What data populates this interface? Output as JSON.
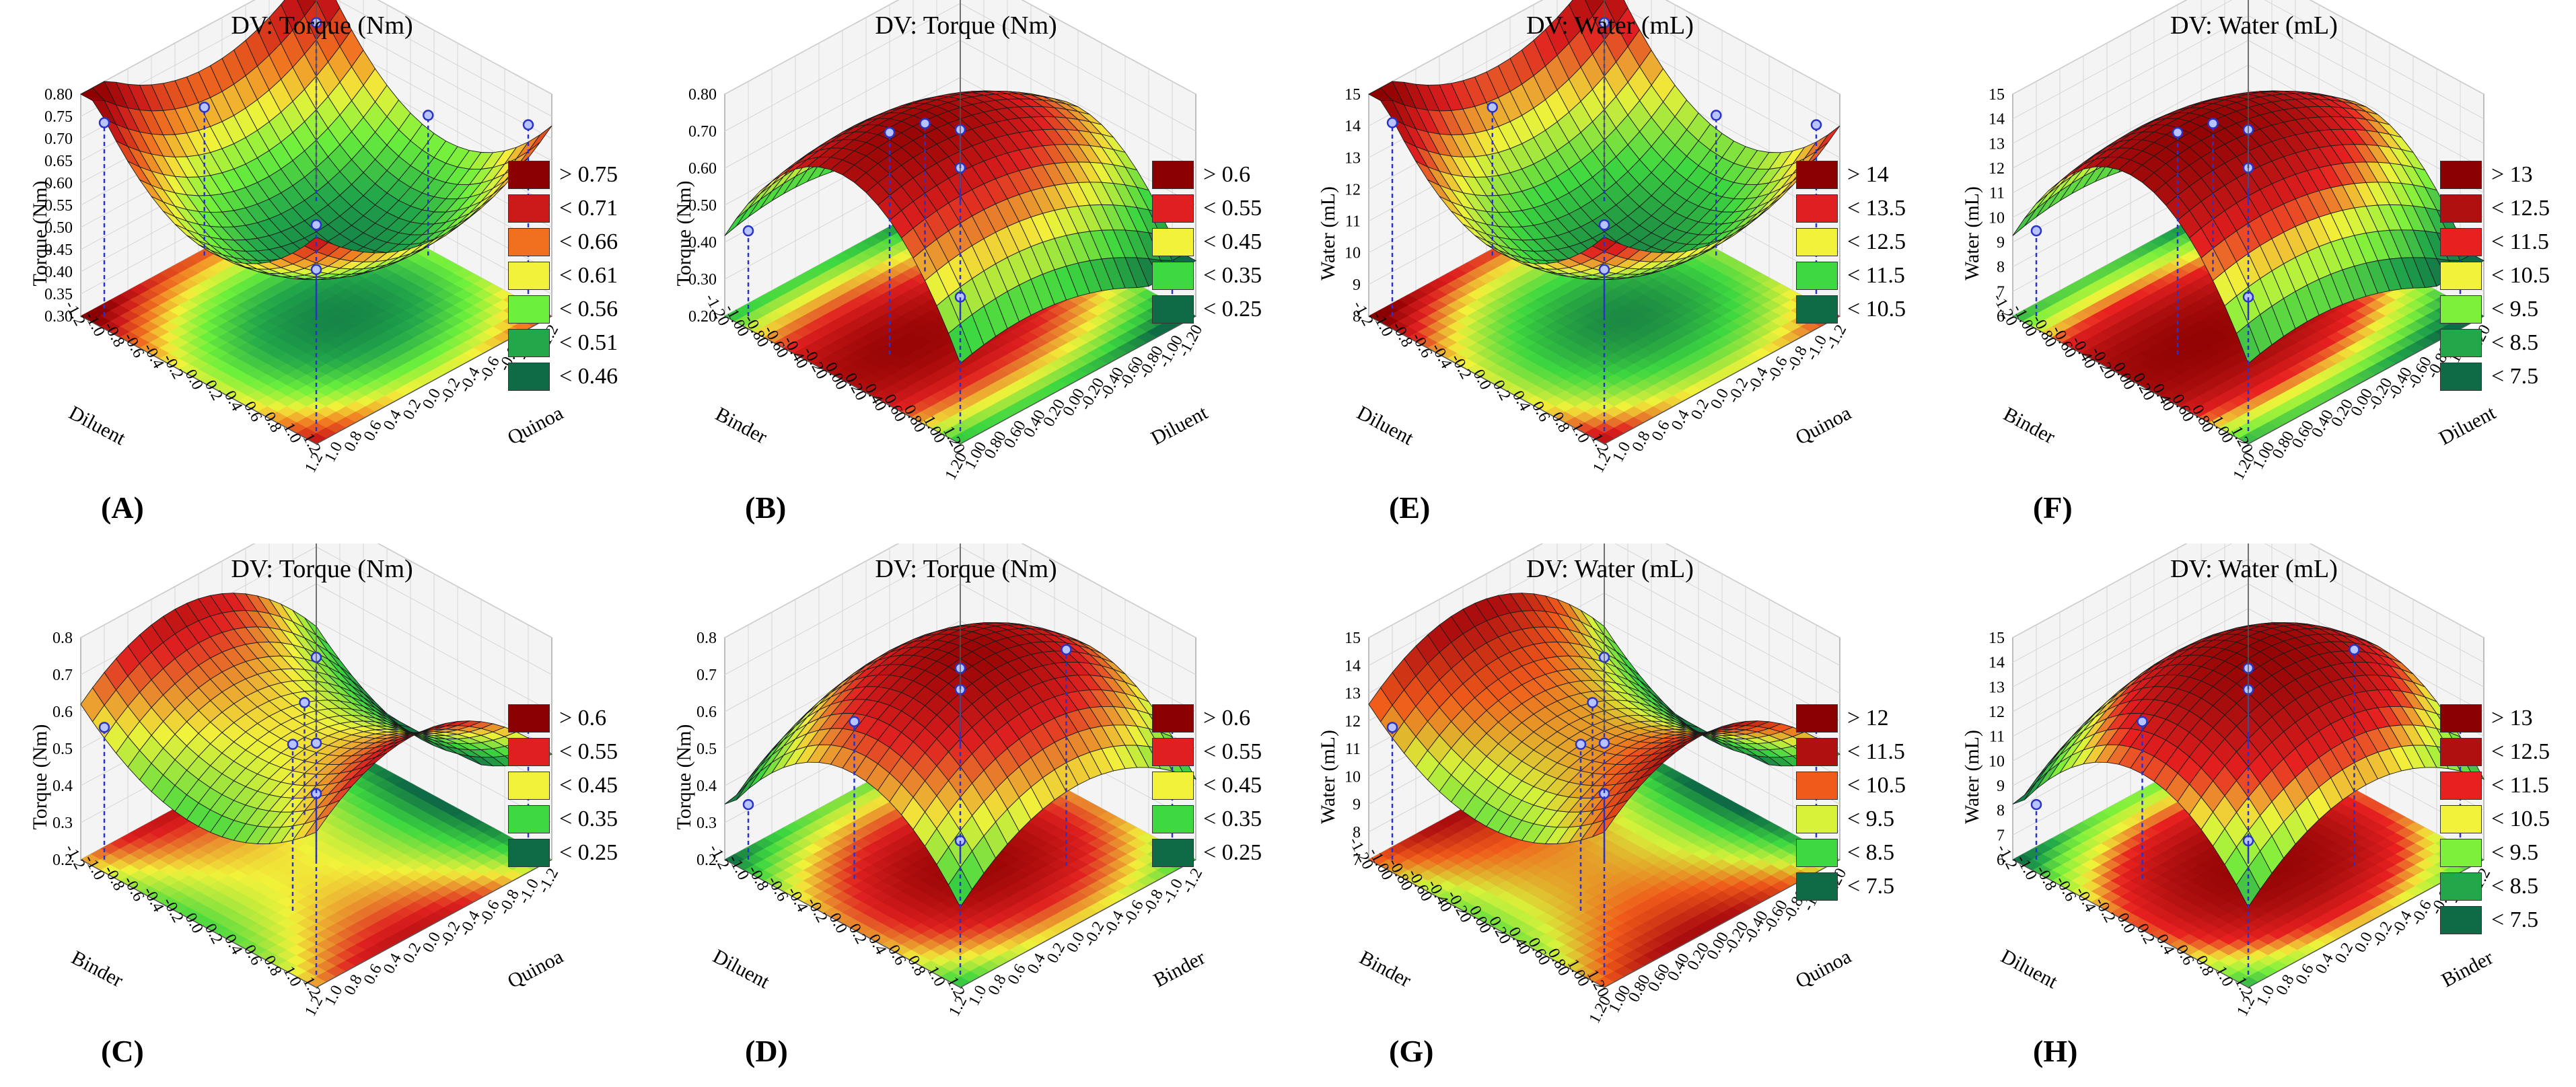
{
  "chart_data": [
    {
      "id": "A",
      "type": "surface3d",
      "title": "DV: Torque (Nm)",
      "panel_label": "(A)",
      "zlabel": "Torque (Nm)",
      "x_axis": "Quinoa",
      "y_axis": "Diluent",
      "x_ticks": [
        "1.2",
        "1.0",
        "0.8",
        "0.6",
        "0.4",
        "0.2",
        "0.0",
        "-0.2",
        "-0.4",
        "-0.6",
        "-0.8",
        "-1.0",
        "-1.2"
      ],
      "y_ticks": [
        "1.2",
        "1.0",
        "0.8",
        "0.6",
        "0.4",
        "0.2",
        "0.0",
        "-0.2",
        "-0.4",
        "-0.6",
        "-0.8",
        "-1.0",
        "-1.2"
      ],
      "z_ticks": [
        "0.30",
        "0.35",
        "0.40",
        "0.45",
        "0.50",
        "0.55",
        "0.60",
        "0.65",
        "0.70",
        "0.75",
        "0.80"
      ],
      "zlim": [
        0.3,
        0.8
      ],
      "shape": "bowl",
      "legend": [
        {
          "label": "> 0.75",
          "color": "#8b0000"
        },
        {
          "label": "< 0.71",
          "color": "#cc1a1a"
        },
        {
          "label": "< 0.66",
          "color": "#f07020"
        },
        {
          "label": "< 0.61",
          "color": "#f2f23a"
        },
        {
          "label": "< 0.56",
          "color": "#6cf03c"
        },
        {
          "label": "< 0.51",
          "color": "#22a84a"
        },
        {
          "label": "< 0.46",
          "color": "#0e6b45"
        }
      ]
    },
    {
      "id": "B",
      "type": "surface3d",
      "title": "DV: Torque (Nm)",
      "panel_label": "(B)",
      "zlabel": "Torque (Nm)",
      "x_axis": "Diluent",
      "y_axis": "Binder",
      "x_ticks": [
        "1.20",
        "1.00",
        "0.80",
        "0.60",
        "0.40",
        "0.20",
        "0.00",
        "-0.20",
        "-0.40",
        "-0.60",
        "-0.80",
        "-1.00",
        "-1.20"
      ],
      "y_ticks": [
        "1.20",
        "1.00",
        "0.80",
        "0.60",
        "0.40",
        "0.20",
        "0.00",
        "-0.20",
        "-0.40",
        "-0.60",
        "-0.80",
        "-1.00",
        "-1.20"
      ],
      "z_ticks": [
        "0.20",
        "0.30",
        "0.40",
        "0.50",
        "0.60",
        "0.70",
        "0.80"
      ],
      "zlim": [
        0.2,
        0.8
      ],
      "shape": "ridge",
      "legend": [
        {
          "label": "> 0.6",
          "color": "#8b0000"
        },
        {
          "label": "< 0.55",
          "color": "#e02020"
        },
        {
          "label": "< 0.45",
          "color": "#f2f23a"
        },
        {
          "label": "< 0.35",
          "color": "#3ed840"
        },
        {
          "label": "< 0.25",
          "color": "#0e6b45"
        }
      ]
    },
    {
      "id": "E",
      "type": "surface3d",
      "title": "DV: Water (mL)",
      "panel_label": "(E)",
      "zlabel": "Water (mL)",
      "x_axis": "Quinoa",
      "y_axis": "Diluent",
      "x_ticks": [
        "1.2",
        "1.0",
        "0.8",
        "0.6",
        "0.4",
        "0.2",
        "0.0",
        "-0.2",
        "-0.4",
        "-0.6",
        "-0.8",
        "-1.0",
        "-1.2"
      ],
      "y_ticks": [
        "1.2",
        "1.0",
        "0.8",
        "0.6",
        "0.4",
        "0.2",
        "0.0",
        "-0.2",
        "-0.4",
        "-0.6",
        "-0.8",
        "-1.0",
        "-1.2"
      ],
      "z_ticks": [
        "8",
        "9",
        "10",
        "11",
        "12",
        "13",
        "14",
        "15"
      ],
      "zlim": [
        8,
        15
      ],
      "shape": "bowl",
      "legend": [
        {
          "label": "> 14",
          "color": "#8b0000"
        },
        {
          "label": "< 13.5",
          "color": "#e02020"
        },
        {
          "label": "< 12.5",
          "color": "#f2f23a"
        },
        {
          "label": "< 11.5",
          "color": "#3ed840"
        },
        {
          "label": "< 10.5",
          "color": "#0e6b45"
        }
      ]
    },
    {
      "id": "F",
      "type": "surface3d",
      "title": "DV: Water (mL)",
      "panel_label": "(F)",
      "zlabel": "Water (mL)",
      "x_axis": "Diluent",
      "y_axis": "Binder",
      "x_ticks": [
        "1.20",
        "1.00",
        "0.80",
        "0.60",
        "0.40",
        "0.20",
        "0.00",
        "-0.20",
        "-0.40",
        "-0.60",
        "-0.80",
        "-1.00",
        "-1.20"
      ],
      "y_ticks": [
        "1.20",
        "1.00",
        "0.80",
        "0.60",
        "0.40",
        "0.20",
        "0.00",
        "-0.20",
        "-0.40",
        "-0.60",
        "-0.80",
        "-1.00",
        "-1.20"
      ],
      "z_ticks": [
        "6",
        "7",
        "8",
        "9",
        "10",
        "11",
        "12",
        "13",
        "14",
        "15"
      ],
      "zlim": [
        6,
        15
      ],
      "shape": "ridge",
      "legend": [
        {
          "label": "> 13",
          "color": "#8b0000"
        },
        {
          "label": "< 12.5",
          "color": "#b01010"
        },
        {
          "label": "< 11.5",
          "color": "#e82020"
        },
        {
          "label": "< 10.5",
          "color": "#f2f23a"
        },
        {
          "label": "< 9.5",
          "color": "#7df03c"
        },
        {
          "label": "< 8.5",
          "color": "#22a84a"
        },
        {
          "label": "< 7.5",
          "color": "#0e6b45"
        }
      ]
    },
    {
      "id": "C",
      "type": "surface3d",
      "title": "DV: Torque (Nm)",
      "panel_label": "(C)",
      "zlabel": "Torque (Nm)",
      "x_axis": "Quinoa",
      "y_axis": "Binder",
      "x_ticks": [
        "1.2",
        "1.0",
        "0.8",
        "0.6",
        "0.4",
        "0.2",
        "0.0",
        "-0.2",
        "-0.4",
        "-0.6",
        "-0.8",
        "-1.0",
        "-1.2"
      ],
      "y_ticks": [
        "1.2",
        "1.0",
        "0.8",
        "0.6",
        "0.4",
        "0.2",
        "0.0",
        "-0.2",
        "-0.4",
        "-0.6",
        "-0.8",
        "-1.0",
        "-1.2"
      ],
      "z_ticks": [
        "0.2",
        "0.3",
        "0.4",
        "0.5",
        "0.6",
        "0.7",
        "0.8"
      ],
      "zlim": [
        0.2,
        0.8
      ],
      "shape": "saddle",
      "legend": [
        {
          "label": "> 0.6",
          "color": "#8b0000"
        },
        {
          "label": "< 0.55",
          "color": "#e02020"
        },
        {
          "label": "< 0.45",
          "color": "#f2f23a"
        },
        {
          "label": "< 0.35",
          "color": "#3ed840"
        },
        {
          "label": "< 0.25",
          "color": "#0e6b45"
        }
      ]
    },
    {
      "id": "D",
      "type": "surface3d",
      "title": "DV: Torque (Nm)",
      "panel_label": "(D)",
      "zlabel": "Torque (Nm)",
      "x_axis": "Binder",
      "y_axis": "Diluent",
      "x_ticks": [
        "1.2",
        "1.0",
        "0.8",
        "0.6",
        "0.4",
        "0.2",
        "0.0",
        "-0.2",
        "-0.4",
        "-0.6",
        "-0.8",
        "-1.0",
        "-1.2"
      ],
      "y_ticks": [
        "1.2",
        "1.0",
        "0.8",
        "0.6",
        "0.4",
        "0.2",
        "0.0",
        "-0.2",
        "-0.4",
        "-0.6",
        "-0.8",
        "-1.0",
        "-1.2"
      ],
      "z_ticks": [
        "0.2",
        "0.3",
        "0.4",
        "0.5",
        "0.6",
        "0.7",
        "0.8"
      ],
      "zlim": [
        0.2,
        0.8
      ],
      "shape": "hump",
      "legend": [
        {
          "label": "> 0.6",
          "color": "#8b0000"
        },
        {
          "label": "< 0.55",
          "color": "#e02020"
        },
        {
          "label": "< 0.45",
          "color": "#f2f23a"
        },
        {
          "label": "< 0.35",
          "color": "#3ed840"
        },
        {
          "label": "< 0.25",
          "color": "#0e6b45"
        }
      ]
    },
    {
      "id": "G",
      "type": "surface3d",
      "title": "DV: Water (mL)",
      "panel_label": "(G)",
      "zlabel": "Water (mL)",
      "x_axis": "Quinoa",
      "y_axis": "Binder",
      "x_ticks": [
        "1.20",
        "1.00",
        "0.80",
        "0.60",
        "0.40",
        "0.20",
        "0.00",
        "-0.20",
        "-0.40",
        "-0.60",
        "-0.80",
        "-1.00",
        "-1.20"
      ],
      "y_ticks": [
        "1.20",
        "1.00",
        "0.80",
        "0.60",
        "0.40",
        "0.20",
        "0.00",
        "-0.20",
        "-0.40",
        "-0.60",
        "-0.80",
        "-1.00",
        "-1.20"
      ],
      "z_ticks": [
        "7",
        "8",
        "9",
        "10",
        "11",
        "12",
        "13",
        "14",
        "15"
      ],
      "zlim": [
        7,
        15
      ],
      "shape": "saddle",
      "legend": [
        {
          "label": "> 12",
          "color": "#8b0000"
        },
        {
          "label": "< 11.5",
          "color": "#b01010"
        },
        {
          "label": "< 10.5",
          "color": "#f05a1a"
        },
        {
          "label": "< 9.5",
          "color": "#d8f23a"
        },
        {
          "label": "< 8.5",
          "color": "#3ed840"
        },
        {
          "label": "< 7.5",
          "color": "#0e6b45"
        }
      ]
    },
    {
      "id": "H",
      "type": "surface3d",
      "title": "DV: Water (mL)",
      "panel_label": "(H)",
      "zlabel": "Water (mL)",
      "x_axis": "Binder",
      "y_axis": "Diluent",
      "x_ticks": [
        "1.2",
        "1.0",
        "0.8",
        "0.6",
        "0.4",
        "0.2",
        "0.0",
        "-0.2",
        "-0.4",
        "-0.6",
        "-0.8",
        "-1.0",
        "-1.2"
      ],
      "y_ticks": [
        "1.2",
        "1.0",
        "0.8",
        "0.6",
        "0.4",
        "0.2",
        "0.0",
        "-0.2",
        "-0.4",
        "-0.6",
        "-0.8",
        "-1.0",
        "-1.2"
      ],
      "z_ticks": [
        "6",
        "7",
        "8",
        "9",
        "10",
        "11",
        "12",
        "13",
        "14",
        "15"
      ],
      "zlim": [
        6,
        15
      ],
      "shape": "hump",
      "legend": [
        {
          "label": "> 13",
          "color": "#8b0000"
        },
        {
          "label": "< 12.5",
          "color": "#b01010"
        },
        {
          "label": "< 11.5",
          "color": "#e82020"
        },
        {
          "label": "< 10.5",
          "color": "#f2f23a"
        },
        {
          "label": "< 9.5",
          "color": "#7df03c"
        },
        {
          "label": "< 8.5",
          "color": "#22a84a"
        },
        {
          "label": "< 7.5",
          "color": "#0e6b45"
        }
      ]
    }
  ]
}
